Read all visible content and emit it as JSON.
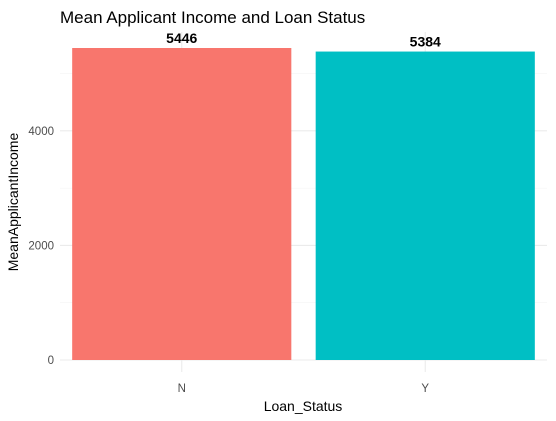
{
  "chart_data": {
    "type": "bar",
    "title": "Mean Applicant Income and Loan Status",
    "xlabel": "Loan_Status",
    "ylabel": "MeanApplicantIncome",
    "categories": [
      "N",
      "Y"
    ],
    "values": [
      5446,
      5384
    ],
    "data_labels": [
      "5446",
      "5384"
    ],
    "colors": [
      "#F8766D",
      "#00BFC4"
    ],
    "y_ticks": [
      0,
      2000,
      4000
    ],
    "y_tick_labels": [
      "0",
      "2000",
      "4000"
    ],
    "ylim": [
      0,
      5446
    ],
    "grid": true,
    "legend": "none"
  }
}
